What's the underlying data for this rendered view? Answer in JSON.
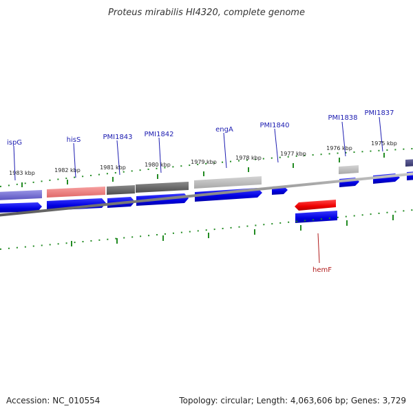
{
  "title": "Proteus mirabilis HI4320, complete genome",
  "footer": {
    "accession": "Accession: NC_010554",
    "summary": "Topology: circular; Length: 4,063,606 bp; Genes: 3,729"
  },
  "ticks": [
    "1983 kbp",
    "1982 kbp",
    "1981 kbp",
    "1980 kbp",
    "1979 kbp",
    "1978 kbp",
    "1977 kbp",
    "1976 kbp",
    "1975 kbp"
  ],
  "genes": [
    {
      "name": "ispG",
      "strand": "+"
    },
    {
      "name": "hisS",
      "strand": "+"
    },
    {
      "name": "PMI1843",
      "strand": "+"
    },
    {
      "name": "PMI1842",
      "strand": "+"
    },
    {
      "name": "engA",
      "strand": "+"
    },
    {
      "name": "PMI1840",
      "strand": "+"
    },
    {
      "name": "PMI1838",
      "strand": "+"
    },
    {
      "name": "PMI1837",
      "strand": "+"
    },
    {
      "name": "hemF",
      "strand": "-"
    }
  ],
  "colors": {
    "cds_forward": "#0000ee",
    "cds_reverse": "#ee0000",
    "backbone": "#808080",
    "tick": "#228b22",
    "label_forward": "#1a1ab0",
    "label_reverse": "#b01a1a"
  }
}
